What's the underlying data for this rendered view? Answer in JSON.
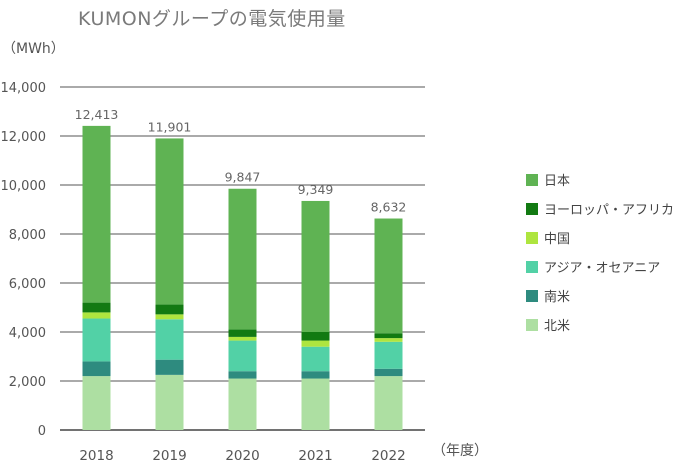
{
  "chart_data": {
    "type": "bar",
    "stacked": true,
    "title": "KUMONグループの電気使用量",
    "ylabel": "（MWh）",
    "xlabel": "（年度）",
    "ylim": [
      0,
      14000
    ],
    "yticks": [
      0,
      2000,
      4000,
      6000,
      8000,
      10000,
      12000,
      14000
    ],
    "ytick_labels": [
      "0",
      "2,000",
      "4,000",
      "6,000",
      "8,000",
      "10,000",
      "12,000",
      "14,000"
    ],
    "categories": [
      "2018",
      "2019",
      "2020",
      "2021",
      "2022"
    ],
    "totals": [
      12413,
      11901,
      9847,
      9349,
      8632
    ],
    "total_labels": [
      "12,413",
      "11,901",
      "9,847",
      "9,349",
      "8,632"
    ],
    "series": [
      {
        "name": "北米",
        "color": "#addfa2",
        "values": [
          2200,
          2250,
          2100,
          2100,
          2200
        ]
      },
      {
        "name": "南米",
        "color": "#2e8b7f",
        "values": [
          600,
          620,
          300,
          300,
          300
        ]
      },
      {
        "name": "アジア・オセアニア",
        "color": "#52d1a6",
        "values": [
          1750,
          1650,
          1250,
          1000,
          1100
        ]
      },
      {
        "name": "中国",
        "color": "#aee53f",
        "values": [
          250,
          200,
          150,
          250,
          150
        ]
      },
      {
        "name": "ヨーロッパ・アフリカ",
        "color": "#127a12",
        "values": [
          400,
          400,
          300,
          350,
          200
        ]
      },
      {
        "name": "日本",
        "color": "#5fb353",
        "values": [
          7213,
          6781,
          5747,
          5349,
          4682
        ]
      }
    ],
    "legend_order": [
      "日本",
      "ヨーロッパ・アフリカ",
      "中国",
      "アジア・オセアニア",
      "南米",
      "北米"
    ],
    "legend_position": "right"
  }
}
